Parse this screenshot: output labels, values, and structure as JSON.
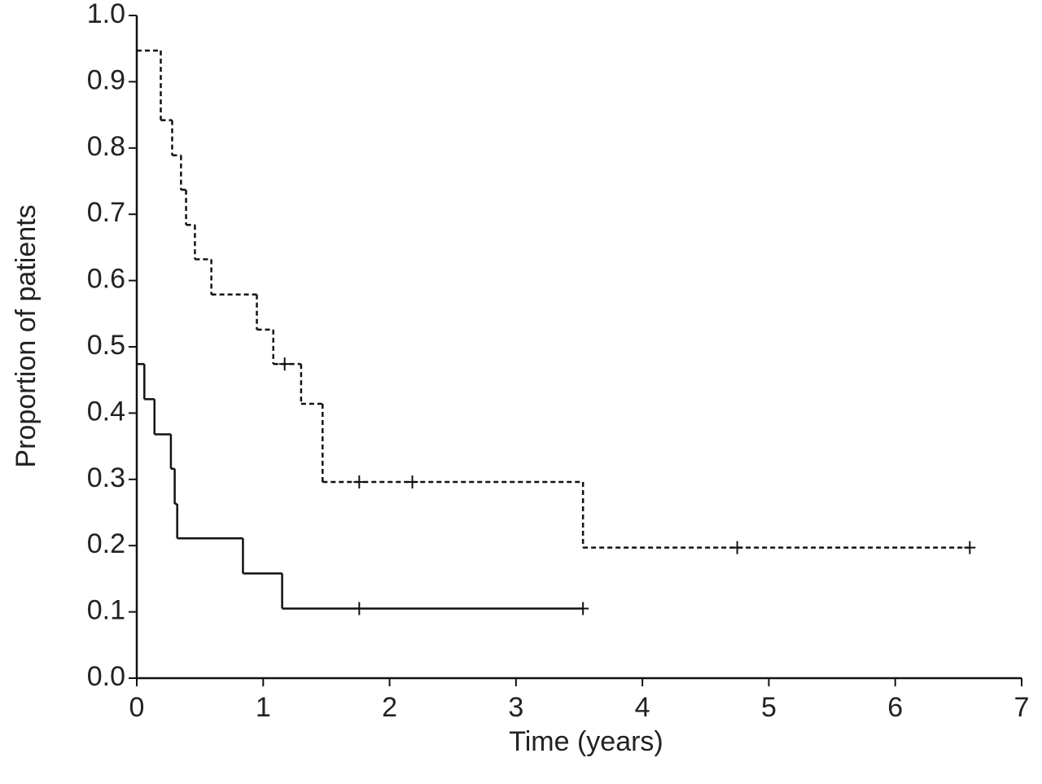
{
  "chart_data": {
    "type": "step",
    "x_label": "Time (years)",
    "y_label": "Proportion of patients",
    "xlim": [
      0,
      7
    ],
    "ylim": [
      0,
      1
    ],
    "xticks": [
      0,
      1,
      2,
      3,
      4,
      5,
      6,
      7
    ],
    "yticks": [
      {
        "value": 0,
        "label": "0.0"
      },
      0.1,
      0.2,
      0.3,
      0.4,
      0.5,
      0.6,
      0.7,
      0.8,
      0.9,
      {
        "value": 1,
        "label": "1.0"
      }
    ],
    "series": [
      {
        "color": "#111111",
        "dashed": true,
        "x": [
          0,
          0.19,
          0.28,
          0.35,
          0.39,
          0.46,
          0.59,
          0.95,
          1.08,
          1.3,
          1.47,
          3.53,
          6.59
        ],
        "values": [
          0.947,
          0.842,
          0.789,
          0.737,
          0.684,
          0.632,
          0.579,
          0.526,
          0.474,
          0.414,
          0.296,
          0.197,
          0.197
        ],
        "censor_x": [
          1.17,
          1.76,
          2.18,
          4.75,
          6.59
        ],
        "censor_values": [
          0.474,
          0.296,
          0.296,
          0.197,
          0.197
        ]
      },
      {
        "color": "#111111",
        "dashed": false,
        "x": [
          0,
          0.06,
          0.14,
          0.27,
          0.3,
          0.32,
          0.84,
          1.15,
          3.53
        ],
        "values": [
          0.474,
          0.421,
          0.368,
          0.316,
          0.263,
          0.211,
          0.158,
          0.105,
          0.105
        ],
        "censor_x": [
          1.76,
          3.53
        ],
        "censor_values": [
          0.105,
          0.105
        ]
      }
    ]
  }
}
